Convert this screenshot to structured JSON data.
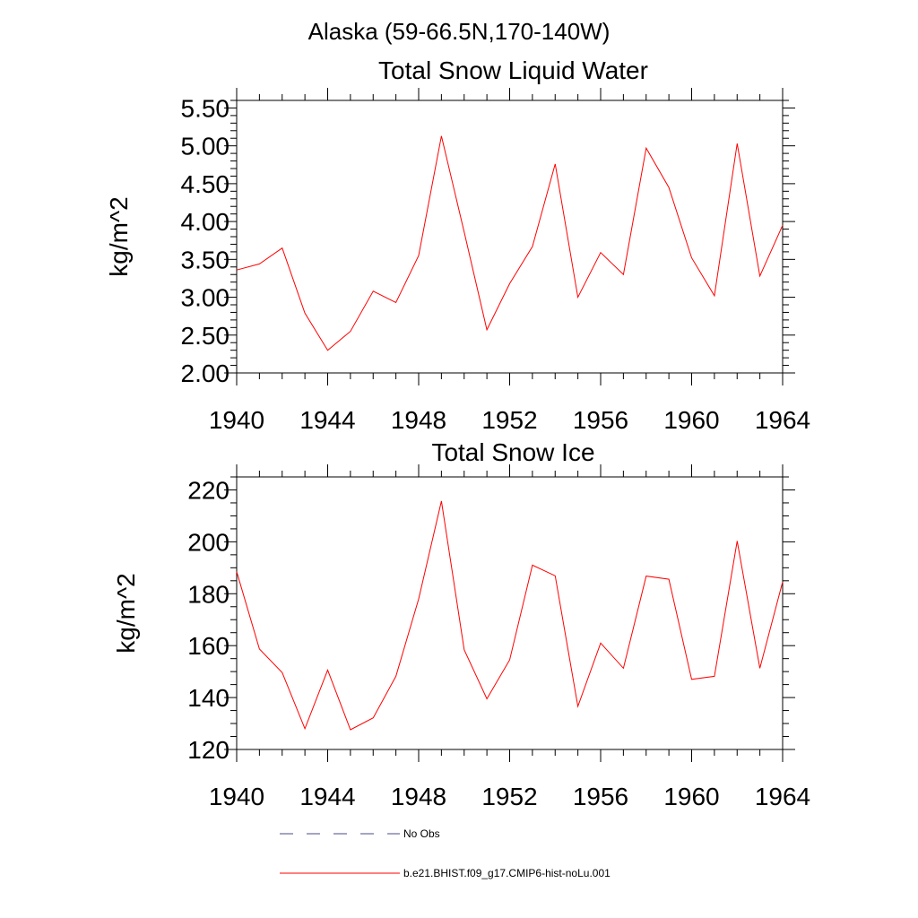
{
  "title": "Alaska (59-66.5N,170-140W)",
  "chart_data": [
    {
      "type": "line",
      "title": "Total Snow Liquid Water",
      "ylabel": "kg/m^2",
      "xlabel": "",
      "xlim": [
        1940,
        1964
      ],
      "ylim": [
        2.0,
        5.6
      ],
      "x_ticks": [
        "1940",
        "1944",
        "1948",
        "1952",
        "1956",
        "1960",
        "1964"
      ],
      "y_ticks": [
        "2.00",
        "2.50",
        "3.00",
        "3.50",
        "4.00",
        "4.50",
        "5.00",
        "5.50"
      ],
      "x": [
        1940,
        1941,
        1942,
        1943,
        1944,
        1945,
        1946,
        1947,
        1948,
        1949,
        1950,
        1951,
        1952,
        1953,
        1954,
        1955,
        1956,
        1957,
        1958,
        1959,
        1960,
        1961,
        1962,
        1963,
        1964
      ],
      "series": [
        {
          "name": "b.e21.BHIST.f09_g17.CMIP6-hist-noLu.001",
          "color": "#ff0000",
          "values": [
            3.36,
            3.44,
            3.65,
            2.79,
            2.3,
            2.55,
            3.08,
            2.93,
            3.55,
            5.13,
            3.86,
            2.57,
            3.18,
            3.67,
            4.76,
            3.0,
            3.59,
            3.3,
            4.97,
            4.45,
            3.52,
            3.02,
            5.03,
            3.28,
            3.95
          ]
        }
      ]
    },
    {
      "type": "line",
      "title": "Total Snow Ice",
      "ylabel": "kg/m^2",
      "xlabel": "",
      "xlim": [
        1940,
        1964
      ],
      "ylim": [
        120,
        225
      ],
      "x_ticks": [
        "1940",
        "1944",
        "1948",
        "1952",
        "1956",
        "1960",
        "1964"
      ],
      "y_ticks": [
        "120",
        "140",
        "160",
        "180",
        "200",
        "220"
      ],
      "x": [
        1940,
        1941,
        1942,
        1943,
        1944,
        1945,
        1946,
        1947,
        1948,
        1949,
        1950,
        1951,
        1952,
        1953,
        1954,
        1955,
        1956,
        1957,
        1958,
        1959,
        1960,
        1961,
        1962,
        1963,
        1964
      ],
      "series": [
        {
          "name": "b.e21.BHIST.f09_g17.CMIP6-hist-noLu.001",
          "color": "#ff0000",
          "values": [
            188.5,
            158.7,
            149.6,
            128.0,
            150.6,
            127.6,
            132.2,
            148.2,
            178.0,
            215.7,
            158.4,
            139.5,
            154.5,
            191.0,
            186.9,
            136.6,
            161.0,
            151.3,
            186.8,
            185.6,
            147.0,
            148.2,
            200.3,
            151.3,
            184.6
          ]
        }
      ]
    }
  ],
  "legend": [
    {
      "label": "No Obs",
      "color": "#4a4a8a",
      "style": "dashed"
    },
    {
      "label": "b.e21.BHIST.f09_g17.CMIP6-hist-noLu.001",
      "color": "#ff0000",
      "style": "solid"
    }
  ]
}
